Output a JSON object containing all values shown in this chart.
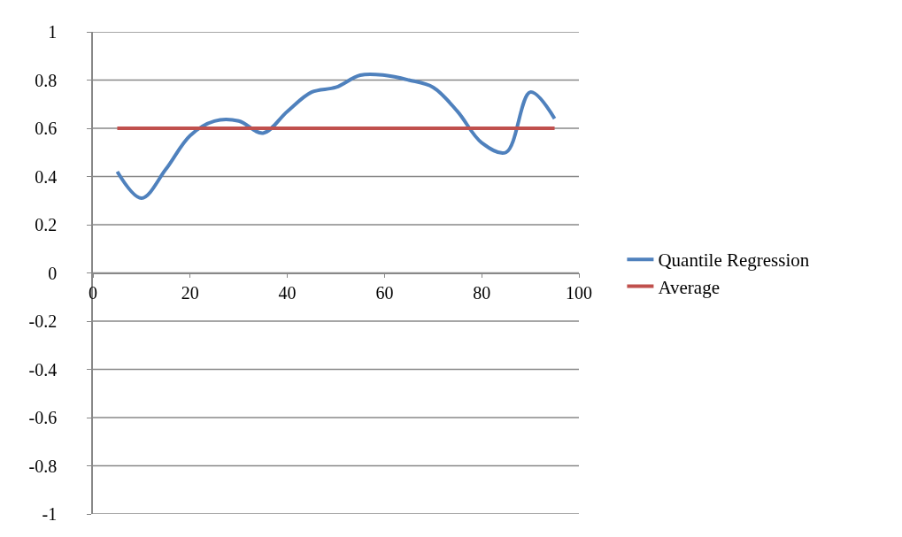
{
  "chart_data": {
    "type": "line",
    "x": [
      5,
      10,
      15,
      20,
      25,
      30,
      35,
      40,
      45,
      50,
      55,
      60,
      65,
      70,
      75,
      80,
      85,
      90,
      95
    ],
    "series": [
      {
        "name": "Quantile Regression",
        "color": "#4f81bd",
        "values": [
          0.42,
          0.31,
          0.43,
          0.57,
          0.63,
          0.63,
          0.58,
          0.67,
          0.75,
          0.77,
          0.82,
          0.82,
          0.8,
          0.77,
          0.67,
          0.54,
          0.5,
          0.75,
          0.64
        ]
      },
      {
        "name": "Average",
        "color": "#c0504d",
        "values": [
          0.6,
          0.6,
          0.6,
          0.6,
          0.6,
          0.6,
          0.6,
          0.6,
          0.6,
          0.6,
          0.6,
          0.6,
          0.6,
          0.6,
          0.6,
          0.6,
          0.6,
          0.6,
          0.6
        ]
      }
    ],
    "xlim": [
      0,
      100
    ],
    "xticks": [
      0,
      20,
      40,
      60,
      80,
      100
    ],
    "ylim": [
      -1,
      1
    ],
    "yticks": [
      -1,
      -0.8,
      -0.6,
      -0.4,
      -0.2,
      0,
      0.2,
      0.4,
      0.6,
      0.8,
      1
    ],
    "grid": "y",
    "legend": "right",
    "marker": "none",
    "line_style": "solid"
  }
}
